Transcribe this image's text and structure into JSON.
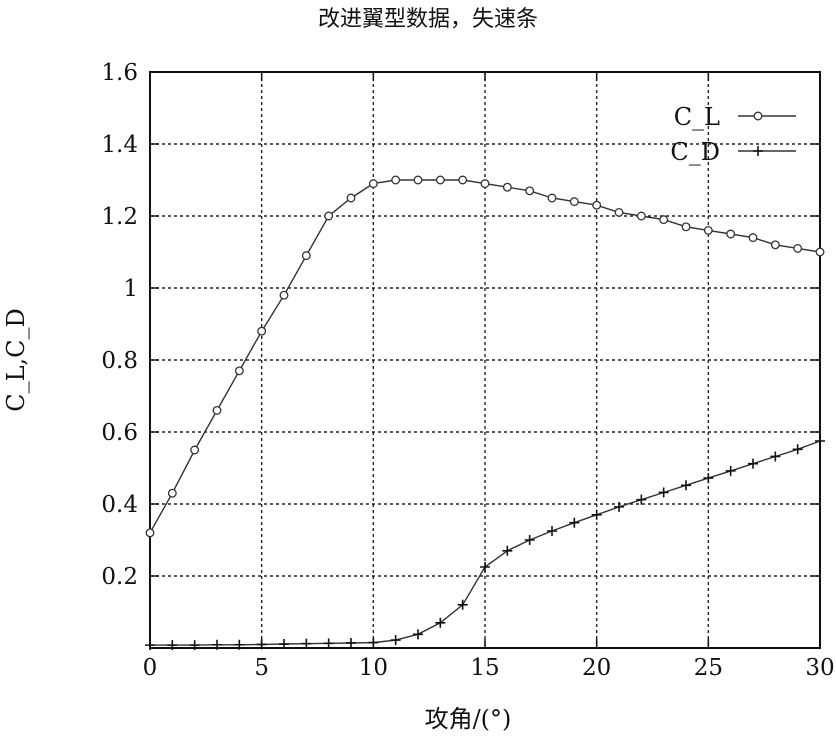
{
  "chart_data": {
    "type": "line",
    "title": "改进翼型数据，失速条",
    "xlabel": "攻角/(°)",
    "ylabel": "C_L,C_D",
    "xlim": [
      0,
      30
    ],
    "ylim": [
      0,
      1.6
    ],
    "xticks": [
      {
        "value": 0,
        "label": "0"
      },
      {
        "value": 5,
        "label": "5"
      },
      {
        "value": 10,
        "label": "10"
      },
      {
        "value": 15,
        "label": "15"
      },
      {
        "value": 20,
        "label": "20"
      },
      {
        "value": 25,
        "label": "25"
      },
      {
        "value": 30,
        "label": "30"
      }
    ],
    "yticks": [
      {
        "value": 0.2,
        "label": "0.2"
      },
      {
        "value": 0.4,
        "label": "0.4"
      },
      {
        "value": 0.6,
        "label": "0.6"
      },
      {
        "value": 0.8,
        "label": "0.8"
      },
      {
        "value": 1.0,
        "label": "1"
      },
      {
        "value": 1.2,
        "label": "1.2"
      },
      {
        "value": 1.4,
        "label": "1.4"
      },
      {
        "value": 1.6,
        "label": "1.6"
      }
    ],
    "grid": true,
    "legend": "top-right",
    "series": [
      {
        "name": "C_L",
        "marker": "circle",
        "color": "#333333",
        "x": [
          0,
          1,
          2,
          3,
          4,
          5,
          6,
          7,
          8,
          9,
          10,
          11,
          12,
          13,
          14,
          15,
          16,
          17,
          18,
          19,
          20,
          21,
          22,
          23,
          24,
          25,
          26,
          27,
          28,
          29,
          30
        ],
        "y": [
          0.32,
          0.43,
          0.55,
          0.66,
          0.77,
          0.88,
          0.98,
          1.09,
          1.2,
          1.25,
          1.29,
          1.3,
          1.3,
          1.3,
          1.3,
          1.29,
          1.28,
          1.27,
          1.25,
          1.24,
          1.23,
          1.21,
          1.2,
          1.19,
          1.17,
          1.16,
          1.15,
          1.14,
          1.12,
          1.11,
          1.1
        ]
      },
      {
        "name": "C_D",
        "marker": "plus",
        "color": "#333333",
        "x": [
          0,
          1,
          2,
          3,
          4,
          5,
          6,
          7,
          8,
          9,
          10,
          11,
          12,
          13,
          14,
          15,
          16,
          17,
          18,
          19,
          20,
          21,
          22,
          23,
          24,
          25,
          26,
          27,
          28,
          29,
          30
        ],
        "y": [
          0.008,
          0.008,
          0.008,
          0.009,
          0.009,
          0.01,
          0.011,
          0.012,
          0.013,
          0.014,
          0.015,
          0.022,
          0.038,
          0.07,
          0.12,
          0.225,
          0.27,
          0.3,
          0.325,
          0.348,
          0.37,
          0.392,
          0.412,
          0.432,
          0.452,
          0.472,
          0.492,
          0.512,
          0.532,
          0.552,
          0.575
        ]
      }
    ]
  }
}
